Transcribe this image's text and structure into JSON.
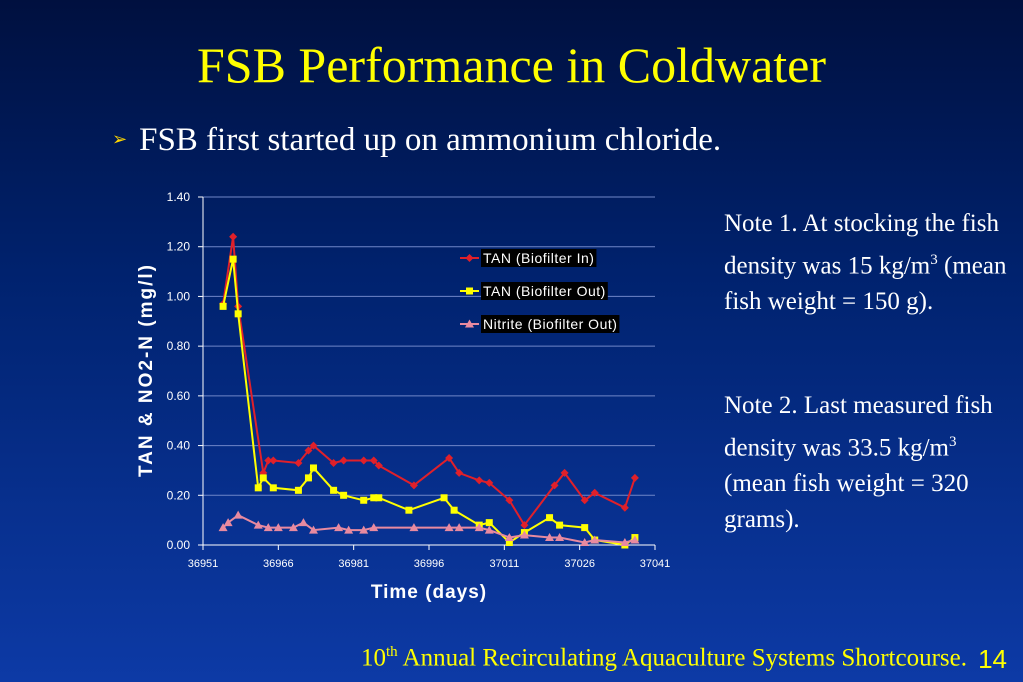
{
  "slide": {
    "title": "FSB Performance in Coldwater",
    "bullet": "FSB first started up on ammonium chloride.",
    "note1": "Note 1. At stocking the fish density was 15 kg/m3 (mean fish weight = 150 g).",
    "note2": "Note 2. Last measured fish density was 33.5 kg/m3 (mean fish weight = 320 grams).",
    "footer": "10th Annual Recirculating Aquaculture Systems Shortcourse.",
    "page_number": "14"
  },
  "chart_data": {
    "type": "line",
    "xlabel": "Time (days)",
    "ylabel": "TAN & NO2-N (mg/l)",
    "xlim": [
      36951,
      37041
    ],
    "ylim": [
      0,
      1.4
    ],
    "x_ticks": [
      "36951",
      "36966",
      "36981",
      "36996",
      "37011",
      "37026",
      "37041"
    ],
    "y_ticks": [
      "0.00",
      "0.20",
      "0.40",
      "0.60",
      "0.80",
      "1.00",
      "1.20",
      "1.40"
    ],
    "legend_position": "upper-right inside plot",
    "grid": "horizontal",
    "series": [
      {
        "name": "TAN (Biofilter In)",
        "color": "#e0202a",
        "marker": "diamond",
        "points": [
          [
            36955,
            0.97
          ],
          [
            36957,
            1.24
          ],
          [
            36958,
            0.96
          ],
          [
            36963,
            0.29
          ],
          [
            36964,
            0.34
          ],
          [
            36965,
            0.34
          ],
          [
            36970,
            0.33
          ],
          [
            36972,
            0.38
          ],
          [
            36973,
            0.4
          ],
          [
            36977,
            0.33
          ],
          [
            36979,
            0.34
          ],
          [
            36983,
            0.34
          ],
          [
            36985,
            0.34
          ],
          [
            36986,
            0.32
          ],
          [
            36993,
            0.24
          ],
          [
            37000,
            0.35
          ],
          [
            37002,
            0.29
          ],
          [
            37006,
            0.26
          ],
          [
            37008,
            0.25
          ],
          [
            37012,
            0.18
          ],
          [
            37015,
            0.08
          ],
          [
            37021,
            0.24
          ],
          [
            37023,
            0.29
          ],
          [
            37027,
            0.18
          ],
          [
            37029,
            0.21
          ],
          [
            37035,
            0.15
          ],
          [
            37037,
            0.27
          ]
        ]
      },
      {
        "name": "TAN (Biofilter Out)",
        "color": "#ffff00",
        "marker": "square",
        "points": [
          [
            36955,
            0.96
          ],
          [
            36957,
            1.15
          ],
          [
            36958,
            0.93
          ],
          [
            36962,
            0.23
          ],
          [
            36963,
            0.27
          ],
          [
            36965,
            0.23
          ],
          [
            36970,
            0.22
          ],
          [
            36972,
            0.27
          ],
          [
            36973,
            0.31
          ],
          [
            36977,
            0.22
          ],
          [
            36979,
            0.2
          ],
          [
            36983,
            0.18
          ],
          [
            36985,
            0.19
          ],
          [
            36986,
            0.19
          ],
          [
            36992,
            0.14
          ],
          [
            36999,
            0.19
          ],
          [
            37001,
            0.14
          ],
          [
            37006,
            0.08
          ],
          [
            37008,
            0.09
          ],
          [
            37012,
            0.01
          ],
          [
            37015,
            0.05
          ],
          [
            37020,
            0.11
          ],
          [
            37022,
            0.08
          ],
          [
            37027,
            0.07
          ],
          [
            37029,
            0.02
          ],
          [
            37035,
            0.0
          ],
          [
            37037,
            0.03
          ]
        ]
      },
      {
        "name": "Nitrite (Biofilter Out)",
        "color": "#e88aa0",
        "marker": "triangle",
        "points": [
          [
            36955,
            0.07
          ],
          [
            36956,
            0.09
          ],
          [
            36958,
            0.12
          ],
          [
            36962,
            0.08
          ],
          [
            36964,
            0.07
          ],
          [
            36966,
            0.07
          ],
          [
            36969,
            0.07
          ],
          [
            36971,
            0.09
          ],
          [
            36973,
            0.06
          ],
          [
            36978,
            0.07
          ],
          [
            36980,
            0.06
          ],
          [
            36983,
            0.06
          ],
          [
            36985,
            0.07
          ],
          [
            36993,
            0.07
          ],
          [
            37000,
            0.07
          ],
          [
            37002,
            0.07
          ],
          [
            37006,
            0.07
          ],
          [
            37008,
            0.06
          ],
          [
            37012,
            0.03
          ],
          [
            37015,
            0.04
          ],
          [
            37020,
            0.03
          ],
          [
            37022,
            0.03
          ],
          [
            37027,
            0.01
          ],
          [
            37029,
            0.02
          ],
          [
            37035,
            0.01
          ],
          [
            37037,
            0.02
          ]
        ]
      }
    ]
  }
}
